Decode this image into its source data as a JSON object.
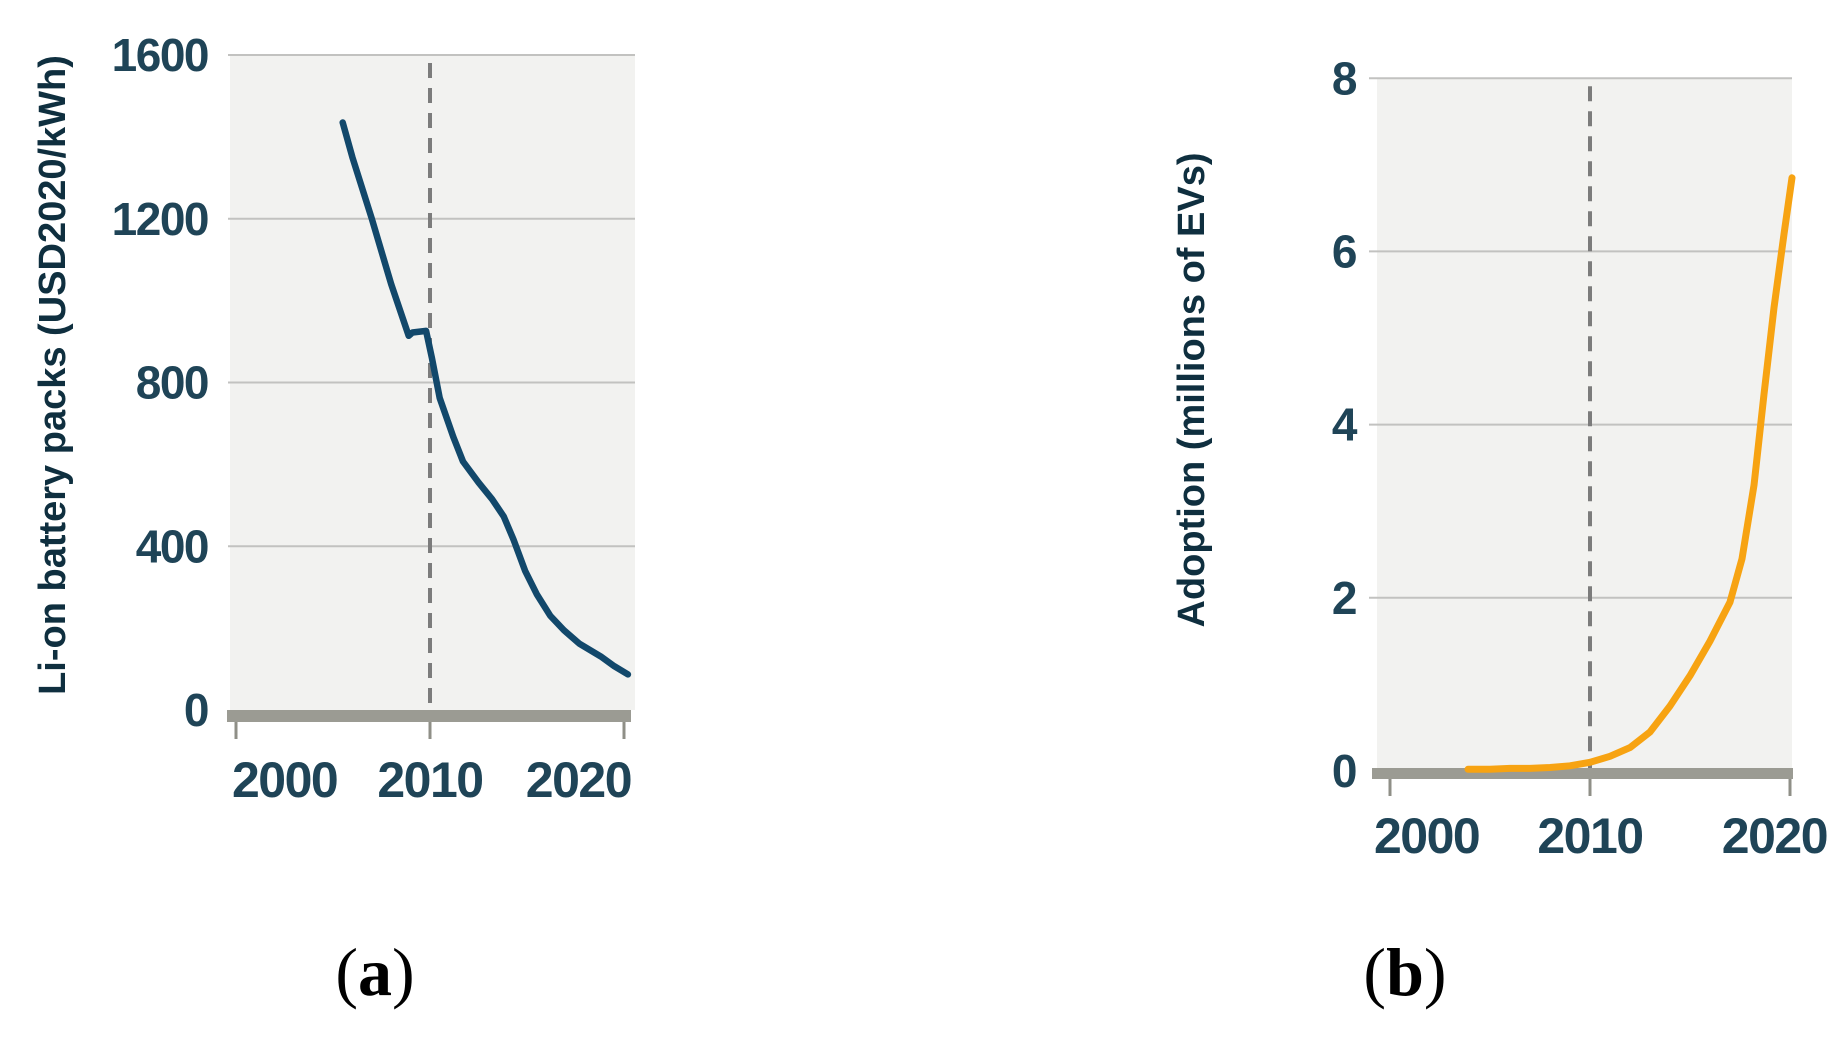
{
  "captions": {
    "a": {
      "open": "(",
      "label": "a",
      "close": ")"
    },
    "b": {
      "open": "(",
      "label": "b",
      "close": ")"
    }
  },
  "chart_data": [
    {
      "id": "a",
      "type": "line",
      "ylabel": "Li-on battery packs (USD2020/kWh)",
      "xlabel": "",
      "x_ticks": [
        2000,
        2010,
        2020
      ],
      "y_ticks": [
        0,
        400,
        800,
        1200,
        1600
      ],
      "ylim": [
        0,
        1600
      ],
      "xlim": [
        1999.7,
        2020.9
      ],
      "grid": true,
      "reference_line_year": 2010,
      "reference_line_style": "dashed",
      "line_color": "#12486b",
      "points": [
        [
          2005.5,
          1435
        ],
        [
          2006,
          1350
        ],
        [
          2007,
          1200
        ],
        [
          2008,
          1040
        ],
        [
          2008.9,
          914
        ],
        [
          2009.1,
          922
        ],
        [
          2009.8,
          926
        ],
        [
          2010.1,
          860
        ],
        [
          2010.5,
          762
        ],
        [
          2011.2,
          667
        ],
        [
          2011.7,
          607
        ],
        [
          2012.5,
          556
        ],
        [
          2013.2,
          515
        ],
        [
          2013.8,
          473
        ],
        [
          2014.3,
          417
        ],
        [
          2014.9,
          340
        ],
        [
          2015.5,
          283
        ],
        [
          2016.2,
          230
        ],
        [
          2016.9,
          195
        ],
        [
          2017.7,
          162
        ],
        [
          2018.8,
          131
        ],
        [
          2019.5,
          107
        ],
        [
          2020.2,
          87
        ]
      ]
    },
    {
      "id": "b",
      "type": "line",
      "ylabel": "Adoption (millions of EVs)",
      "xlabel": "",
      "x_ticks": [
        2000,
        2010,
        2020
      ],
      "y_ticks": [
        0,
        2,
        4,
        6,
        8
      ],
      "ylim": [
        0,
        8
      ],
      "xlim": [
        1999.1,
        2020.2
      ],
      "grid": true,
      "reference_line_year": 2010,
      "reference_line_style": "dashed",
      "line_color": "#f7a312",
      "points": [
        [
          2003.9,
          0.02
        ],
        [
          2005,
          0.02
        ],
        [
          2006,
          0.03
        ],
        [
          2007,
          0.03
        ],
        [
          2008,
          0.04
        ],
        [
          2009,
          0.06
        ],
        [
          2010,
          0.1
        ],
        [
          2011,
          0.17
        ],
        [
          2012,
          0.27
        ],
        [
          2013,
          0.45
        ],
        [
          2014,
          0.75
        ],
        [
          2015,
          1.1
        ],
        [
          2016,
          1.5
        ],
        [
          2017,
          1.95
        ],
        [
          2017.6,
          2.45
        ],
        [
          2018.2,
          3.3
        ],
        [
          2018.7,
          4.35
        ],
        [
          2019.2,
          5.35
        ],
        [
          2019.7,
          6.2
        ],
        [
          2020.1,
          6.85
        ]
      ]
    }
  ]
}
